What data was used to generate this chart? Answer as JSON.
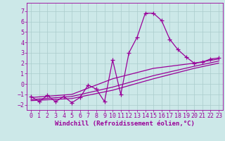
{
  "background_color": "#cce8e8",
  "grid_color": "#aacccc",
  "line_color": "#990099",
  "marker": "+",
  "linewidth": 0.9,
  "markersize": 4,
  "markeredgewidth": 0.9,
  "xlabel": "Windchill (Refroidissement éolien,°C)",
  "xlabel_fontsize": 6.5,
  "tick_fontsize": 6,
  "xlim": [
    -0.5,
    23.5
  ],
  "ylim": [
    -2.5,
    7.8
  ],
  "yticks": [
    -2,
    -1,
    0,
    1,
    2,
    3,
    4,
    5,
    6,
    7
  ],
  "xticks": [
    0,
    1,
    2,
    3,
    4,
    5,
    6,
    7,
    8,
    9,
    10,
    11,
    12,
    13,
    14,
    15,
    16,
    17,
    18,
    19,
    20,
    21,
    22,
    23
  ],
  "series1": [
    [
      0,
      -1.2
    ],
    [
      1,
      -1.7
    ],
    [
      2,
      -1.1
    ],
    [
      3,
      -1.7
    ],
    [
      4,
      -1.2
    ],
    [
      5,
      -1.8
    ],
    [
      6,
      -1.3
    ],
    [
      7,
      -0.1
    ],
    [
      8,
      -0.5
    ],
    [
      9,
      -1.7
    ],
    [
      10,
      2.3
    ],
    [
      11,
      -1.0
    ],
    [
      12,
      3.0
    ],
    [
      13,
      4.5
    ],
    [
      14,
      6.8
    ],
    [
      15,
      6.8
    ],
    [
      16,
      6.1
    ],
    [
      17,
      4.3
    ],
    [
      18,
      3.3
    ],
    [
      19,
      2.6
    ],
    [
      20,
      2.0
    ],
    [
      21,
      2.1
    ],
    [
      22,
      2.4
    ],
    [
      23,
      2.5
    ]
  ],
  "series2": [
    [
      0,
      -1.3
    ],
    [
      5,
      -1.0
    ],
    [
      10,
      0.5
    ],
    [
      15,
      1.5
    ],
    [
      20,
      2.0
    ],
    [
      23,
      2.4
    ]
  ],
  "series3": [
    [
      0,
      -1.5
    ],
    [
      5,
      -1.2
    ],
    [
      10,
      -0.3
    ],
    [
      15,
      0.8
    ],
    [
      20,
      1.7
    ],
    [
      23,
      2.2
    ]
  ],
  "series4": [
    [
      0,
      -1.6
    ],
    [
      5,
      -1.4
    ],
    [
      10,
      -0.6
    ],
    [
      15,
      0.5
    ],
    [
      20,
      1.5
    ],
    [
      23,
      2.0
    ]
  ]
}
